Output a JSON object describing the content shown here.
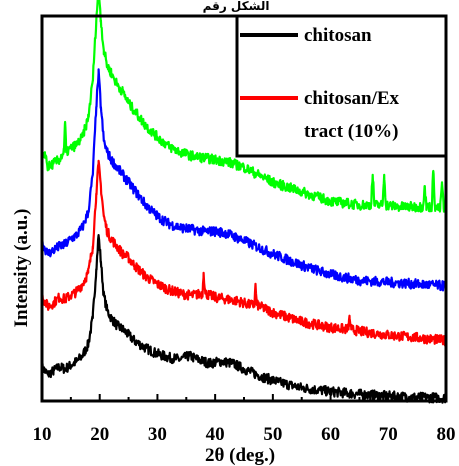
{
  "header": {
    "cropped_text": "ﺍﻟﺸﻜﻞ ﺭﻗﻢ"
  },
  "colors": {
    "axis": "#000000",
    "background": "#ffffff"
  },
  "chart_data": {
    "type": "line",
    "title": "",
    "xlabel": "2θ (deg.)",
    "ylabel": "Intensity (a.u.)",
    "xlim": [
      10,
      80
    ],
    "ylim": [
      0,
      100
    ],
    "x_ticks": [
      10,
      20,
      30,
      40,
      50,
      60,
      70,
      80
    ],
    "y_ticks": [],
    "grid": false,
    "legend": {
      "placement": "top-right",
      "entries": [
        "chitosan",
        "chitosan/Ex tract (10%)"
      ]
    },
    "legend_lines": [
      [
        "chitosan"
      ],
      [
        "chitosan/Ex",
        "tract (10%)"
      ]
    ],
    "series": [
      {
        "name": "chitosan",
        "color": "#000000",
        "x": [
          10,
          11,
          12,
          13,
          14,
          15,
          16,
          17,
          18,
          18.8,
          19.4,
          19.8,
          20.2,
          20.7,
          21.3,
          22,
          23,
          24,
          25,
          26,
          28,
          30,
          32,
          34,
          35.5,
          37,
          39,
          41,
          43,
          45,
          48,
          51,
          55,
          60,
          65,
          70,
          75,
          80
        ],
        "y": [
          9,
          7,
          8,
          9,
          8.5,
          9.5,
          10.5,
          12,
          15,
          22,
          35,
          44,
          37,
          28,
          24,
          22,
          20,
          19,
          17.5,
          16,
          14,
          12.5,
          11.5,
          11,
          12,
          11,
          10,
          10.5,
          10,
          8.5,
          6.5,
          5,
          3.5,
          2.5,
          1.8,
          1.3,
          1,
          0.8
        ]
      },
      {
        "name": "",
        "color": "#ff0000",
        "x": [
          10,
          11,
          12,
          13,
          14,
          15,
          16,
          17,
          18,
          18.8,
          19.4,
          19.8,
          20.2,
          20.7,
          21.3,
          22,
          23,
          24,
          25,
          26,
          28,
          30,
          32,
          34,
          36,
          37.8,
          38,
          38.3,
          40,
          42,
          44,
          46,
          46.8,
          47,
          47.2,
          50,
          55,
          60,
          63,
          63.3,
          63.6,
          65,
          70,
          75,
          80
        ],
        "y": [
          28,
          25,
          26,
          27.5,
          27,
          28,
          29,
          31,
          34,
          41,
          55,
          63,
          57,
          49,
          45,
          43,
          41,
          39,
          38,
          36,
          33,
          31,
          29.5,
          28.5,
          28,
          28.5,
          34,
          28.5,
          27.5,
          27,
          26.5,
          25.5,
          25.5,
          31,
          25.5,
          23.5,
          21,
          19.5,
          19,
          22,
          19,
          18.5,
          17.5,
          16.8,
          16
        ]
      },
      {
        "name": "",
        "color": "#0000ff",
        "x": [
          10,
          11,
          12,
          13,
          14,
          15,
          16,
          17,
          18,
          18.8,
          19.4,
          19.8,
          20.2,
          20.7,
          21.3,
          22,
          23,
          24,
          25,
          26,
          28,
          30,
          32,
          34,
          36,
          38,
          40,
          42,
          45,
          50,
          55,
          60,
          65,
          70,
          75,
          80
        ],
        "y": [
          42,
          39,
          40,
          41,
          41.5,
          43,
          44,
          46,
          50,
          60,
          78,
          87,
          78,
          69,
          66,
          64,
          62,
          60,
          58,
          56,
          52,
          49,
          47,
          46,
          45.5,
          45,
          45,
          44.5,
          42.5,
          39,
          36,
          33.5,
          32,
          31.5,
          31,
          30.5
        ]
      },
      {
        "name": "",
        "color": "#00ff00",
        "x": [
          10,
          10.5,
          11,
          12,
          13,
          13.8,
          14,
          14.2,
          15,
          16,
          17,
          18,
          18.8,
          19.4,
          19.8,
          20.2,
          20.7,
          21.3,
          22,
          23,
          24,
          25,
          26,
          28,
          30,
          32,
          34,
          36,
          38,
          40,
          42,
          45,
          50,
          55,
          60,
          65,
          67,
          67.3,
          67.6,
          69,
          69.3,
          69.6,
          72,
          75,
          76,
          76.3,
          76.6,
          77.5,
          77.8,
          78.1,
          79,
          79.3,
          79.6,
          80
        ],
        "y": [
          63,
          66,
          62,
          63,
          64,
          66,
          74,
          66,
          67,
          68,
          70,
          75,
          85,
          101,
          110,
          101,
          93,
          89,
          87,
          84,
          82,
          79,
          77,
          73,
          70,
          67.5,
          66,
          65,
          64.5,
          64,
          63.5,
          62,
          58,
          55.5,
          53,
          52,
          52,
          60,
          52,
          52,
          60,
          52,
          51.5,
          51.5,
          51.5,
          57,
          51.5,
          51.5,
          61,
          51.5,
          51,
          58,
          51,
          51
        ]
      }
    ]
  }
}
